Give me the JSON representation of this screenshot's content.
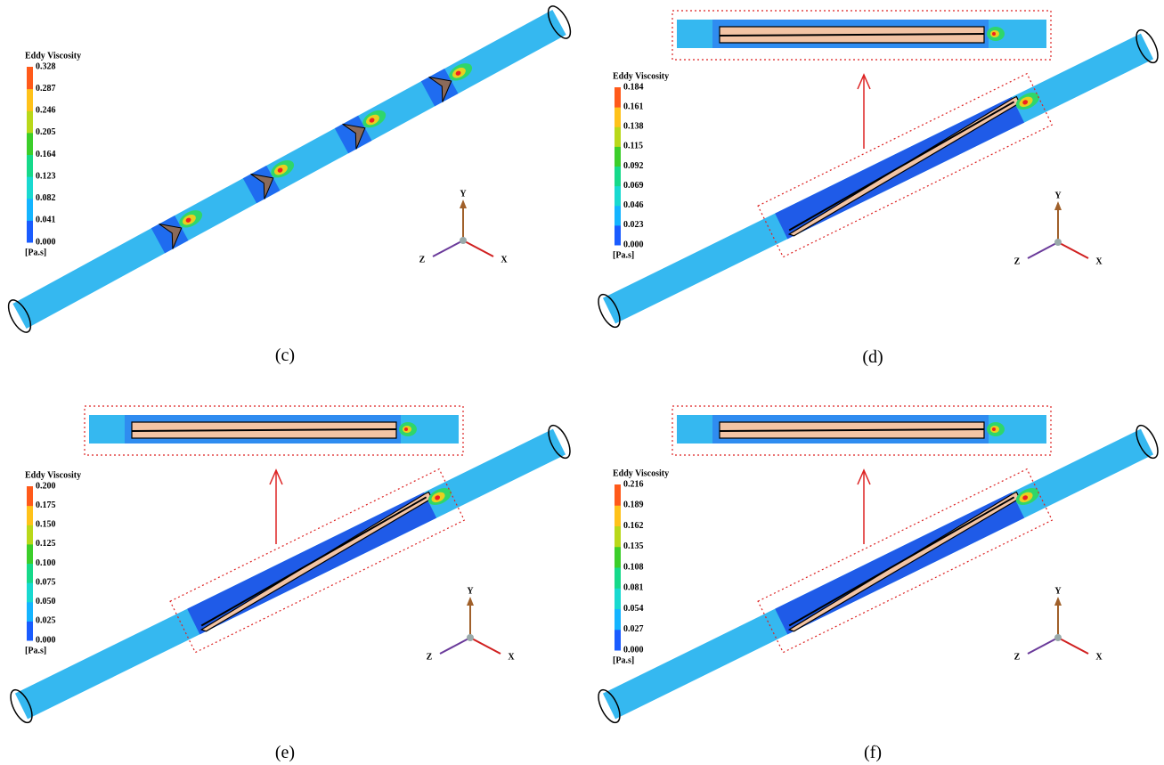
{
  "panels": [
    {
      "caption": "(c)",
      "legend": {
        "title": "Eddy Viscosity",
        "ticks": [
          "0.328",
          "0.287",
          "0.246",
          "0.205",
          "0.164",
          "0.123",
          "0.082",
          "0.041",
          "0.000"
        ],
        "unit": "[Pa.s]"
      },
      "axes": [
        "Y",
        "Z",
        "X"
      ]
    },
    {
      "caption": "(d)",
      "legend": {
        "title": "Eddy Viscosity",
        "ticks": [
          "0.184",
          "0.161",
          "0.138",
          "0.115",
          "0.092",
          "0.069",
          "0.046",
          "0.023",
          "0.000"
        ],
        "unit": "[Pa.s]"
      },
      "axes": [
        "Y",
        "Z",
        "X"
      ]
    },
    {
      "caption": "(e)",
      "legend": {
        "title": "Eddy Viscosity",
        "ticks": [
          "0.200",
          "0.175",
          "0.150",
          "0.125",
          "0.100",
          "0.075",
          "0.050",
          "0.025",
          "0.000"
        ],
        "unit": "[Pa.s]"
      },
      "axes": [
        "Y",
        "Z",
        "X"
      ]
    },
    {
      "caption": "(f)",
      "legend": {
        "title": "Eddy Viscosity",
        "ticks": [
          "0.216",
          "0.189",
          "0.162",
          "0.135",
          "0.108",
          "0.081",
          "0.054",
          "0.027",
          "0.000"
        ],
        "unit": "[Pa.s]"
      },
      "axes": [
        "Y",
        "Z",
        "X"
      ]
    }
  ]
}
